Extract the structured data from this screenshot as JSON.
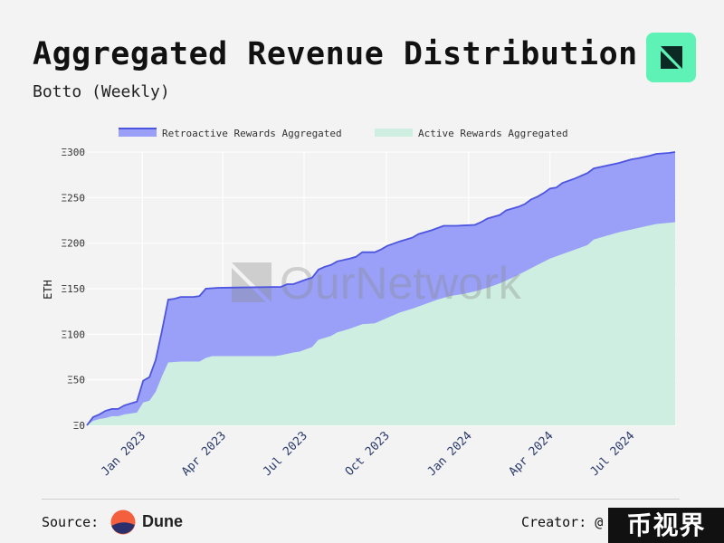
{
  "header": {
    "title": "Aggregated Revenue Distribution",
    "subtitle": "Botto (Weekly)"
  },
  "footer": {
    "source_label": "Source:",
    "source_name": "Dune",
    "creator_label": "Creator: @",
    "badge_text": "币视界"
  },
  "colors": {
    "retroactive_fill": "#9aa0f7",
    "retroactive_line": "#4c54e0",
    "active_fill": "#cdeee0",
    "logo_bg": "#5ef2b6",
    "dune_orange": "#f4603e",
    "dune_navy": "#2b2f6b"
  },
  "chart_data": {
    "type": "area",
    "watermark": "OurNetwork",
    "ylabel": "ETH",
    "ylim": [
      0,
      300
    ],
    "yticks": [
      "Ξ0",
      "Ξ50",
      "Ξ100",
      "Ξ150",
      "Ξ200",
      "Ξ250",
      "Ξ300"
    ],
    "ytick_values": [
      0,
      50,
      100,
      150,
      200,
      250,
      300
    ],
    "xlim": [
      "2022-10-31",
      "2024-08-20"
    ],
    "xticks": [
      "Jan 2023",
      "Apr 2023",
      "Jul 2023",
      "Oct 2023",
      "Jan 2024",
      "Apr 2024",
      "Jul 2024"
    ],
    "xtick_dates": [
      "2023-01-01",
      "2023-04-01",
      "2023-07-01",
      "2023-10-01",
      "2024-01-01",
      "2024-04-01",
      "2024-07-01"
    ],
    "grid": true,
    "legend": "top",
    "series": [
      {
        "name": "Retroactive Rewards Aggregated",
        "points": [
          [
            "2022-10-31",
            0
          ],
          [
            "2022-11-07",
            9
          ],
          [
            "2022-11-14",
            12
          ],
          [
            "2022-11-21",
            16
          ],
          [
            "2022-11-28",
            18
          ],
          [
            "2022-12-05",
            18
          ],
          [
            "2022-12-12",
            22
          ],
          [
            "2022-12-19",
            24
          ],
          [
            "2022-12-26",
            26
          ],
          [
            "2023-01-02",
            49
          ],
          [
            "2023-01-09",
            53
          ],
          [
            "2023-01-16",
            72
          ],
          [
            "2023-01-23",
            104
          ],
          [
            "2023-01-30",
            138
          ],
          [
            "2023-02-06",
            139
          ],
          [
            "2023-02-13",
            141
          ],
          [
            "2023-02-27",
            141
          ],
          [
            "2023-03-06",
            142
          ],
          [
            "2023-03-13",
            150
          ],
          [
            "2023-03-27",
            151
          ],
          [
            "2023-06-05",
            152
          ],
          [
            "2023-06-12",
            155
          ],
          [
            "2023-06-19",
            155
          ],
          [
            "2023-07-03",
            160
          ],
          [
            "2023-07-10",
            162
          ],
          [
            "2023-07-17",
            171
          ],
          [
            "2023-07-24",
            174
          ],
          [
            "2023-07-31",
            176
          ],
          [
            "2023-08-07",
            180
          ],
          [
            "2023-08-21",
            183
          ],
          [
            "2023-08-28",
            185
          ],
          [
            "2023-09-04",
            190
          ],
          [
            "2023-09-18",
            190
          ],
          [
            "2023-09-25",
            193
          ],
          [
            "2023-10-02",
            197
          ],
          [
            "2023-10-16",
            202
          ],
          [
            "2023-10-30",
            206
          ],
          [
            "2023-11-06",
            210
          ],
          [
            "2023-11-20",
            214
          ],
          [
            "2023-12-04",
            219
          ],
          [
            "2023-12-18",
            219
          ],
          [
            "2024-01-08",
            220
          ],
          [
            "2024-01-15",
            223
          ],
          [
            "2024-01-22",
            227
          ],
          [
            "2024-02-05",
            231
          ],
          [
            "2024-02-12",
            236
          ],
          [
            "2024-02-26",
            240
          ],
          [
            "2024-03-04",
            243
          ],
          [
            "2024-03-11",
            248
          ],
          [
            "2024-03-18",
            251
          ],
          [
            "2024-03-25",
            255
          ],
          [
            "2024-04-01",
            260
          ],
          [
            "2024-04-08",
            261
          ],
          [
            "2024-04-15",
            266
          ],
          [
            "2024-04-29",
            271
          ],
          [
            "2024-05-06",
            274
          ],
          [
            "2024-05-13",
            277
          ],
          [
            "2024-05-20",
            282
          ],
          [
            "2024-06-03",
            285
          ],
          [
            "2024-06-17",
            288
          ],
          [
            "2024-07-01",
            292
          ],
          [
            "2024-07-08",
            293
          ],
          [
            "2024-07-22",
            296
          ],
          [
            "2024-07-29",
            298
          ],
          [
            "2024-08-12",
            299
          ],
          [
            "2024-08-19",
            300
          ]
        ]
      },
      {
        "name": "Active Rewards Aggregated",
        "points": [
          [
            "2022-10-31",
            0
          ],
          [
            "2022-11-07",
            5
          ],
          [
            "2022-11-14",
            7
          ],
          [
            "2022-11-21",
            8
          ],
          [
            "2022-11-28",
            10
          ],
          [
            "2022-12-05",
            10
          ],
          [
            "2022-12-12",
            12
          ],
          [
            "2022-12-19",
            13
          ],
          [
            "2022-12-26",
            14
          ],
          [
            "2023-01-02",
            25
          ],
          [
            "2023-01-09",
            27
          ],
          [
            "2023-01-16",
            37
          ],
          [
            "2023-01-23",
            54
          ],
          [
            "2023-01-30",
            69
          ],
          [
            "2023-02-13",
            70
          ],
          [
            "2023-03-06",
            70
          ],
          [
            "2023-03-13",
            74
          ],
          [
            "2023-03-20",
            76
          ],
          [
            "2023-05-29",
            76
          ],
          [
            "2023-06-05",
            77
          ],
          [
            "2023-06-19",
            80
          ],
          [
            "2023-06-26",
            81
          ],
          [
            "2023-07-10",
            86
          ],
          [
            "2023-07-17",
            94
          ],
          [
            "2023-07-24",
            96
          ],
          [
            "2023-07-31",
            98
          ],
          [
            "2023-08-07",
            102
          ],
          [
            "2023-08-21",
            106
          ],
          [
            "2023-09-04",
            111
          ],
          [
            "2023-09-18",
            112
          ],
          [
            "2023-10-02",
            118
          ],
          [
            "2023-10-16",
            124
          ],
          [
            "2023-10-30",
            128
          ],
          [
            "2023-11-13",
            133
          ],
          [
            "2023-11-27",
            138
          ],
          [
            "2023-12-11",
            142
          ],
          [
            "2023-12-25",
            144
          ],
          [
            "2024-01-08",
            147
          ],
          [
            "2024-01-22",
            151
          ],
          [
            "2024-02-05",
            156
          ],
          [
            "2024-02-19",
            162
          ],
          [
            "2024-03-04",
            169
          ],
          [
            "2024-03-18",
            176
          ],
          [
            "2024-04-01",
            183
          ],
          [
            "2024-04-15",
            188
          ],
          [
            "2024-04-29",
            193
          ],
          [
            "2024-05-13",
            198
          ],
          [
            "2024-05-20",
            204
          ],
          [
            "2024-06-03",
            208
          ],
          [
            "2024-06-17",
            212
          ],
          [
            "2024-07-01",
            215
          ],
          [
            "2024-07-15",
            218
          ],
          [
            "2024-07-29",
            221
          ],
          [
            "2024-08-19",
            223
          ]
        ]
      }
    ]
  }
}
